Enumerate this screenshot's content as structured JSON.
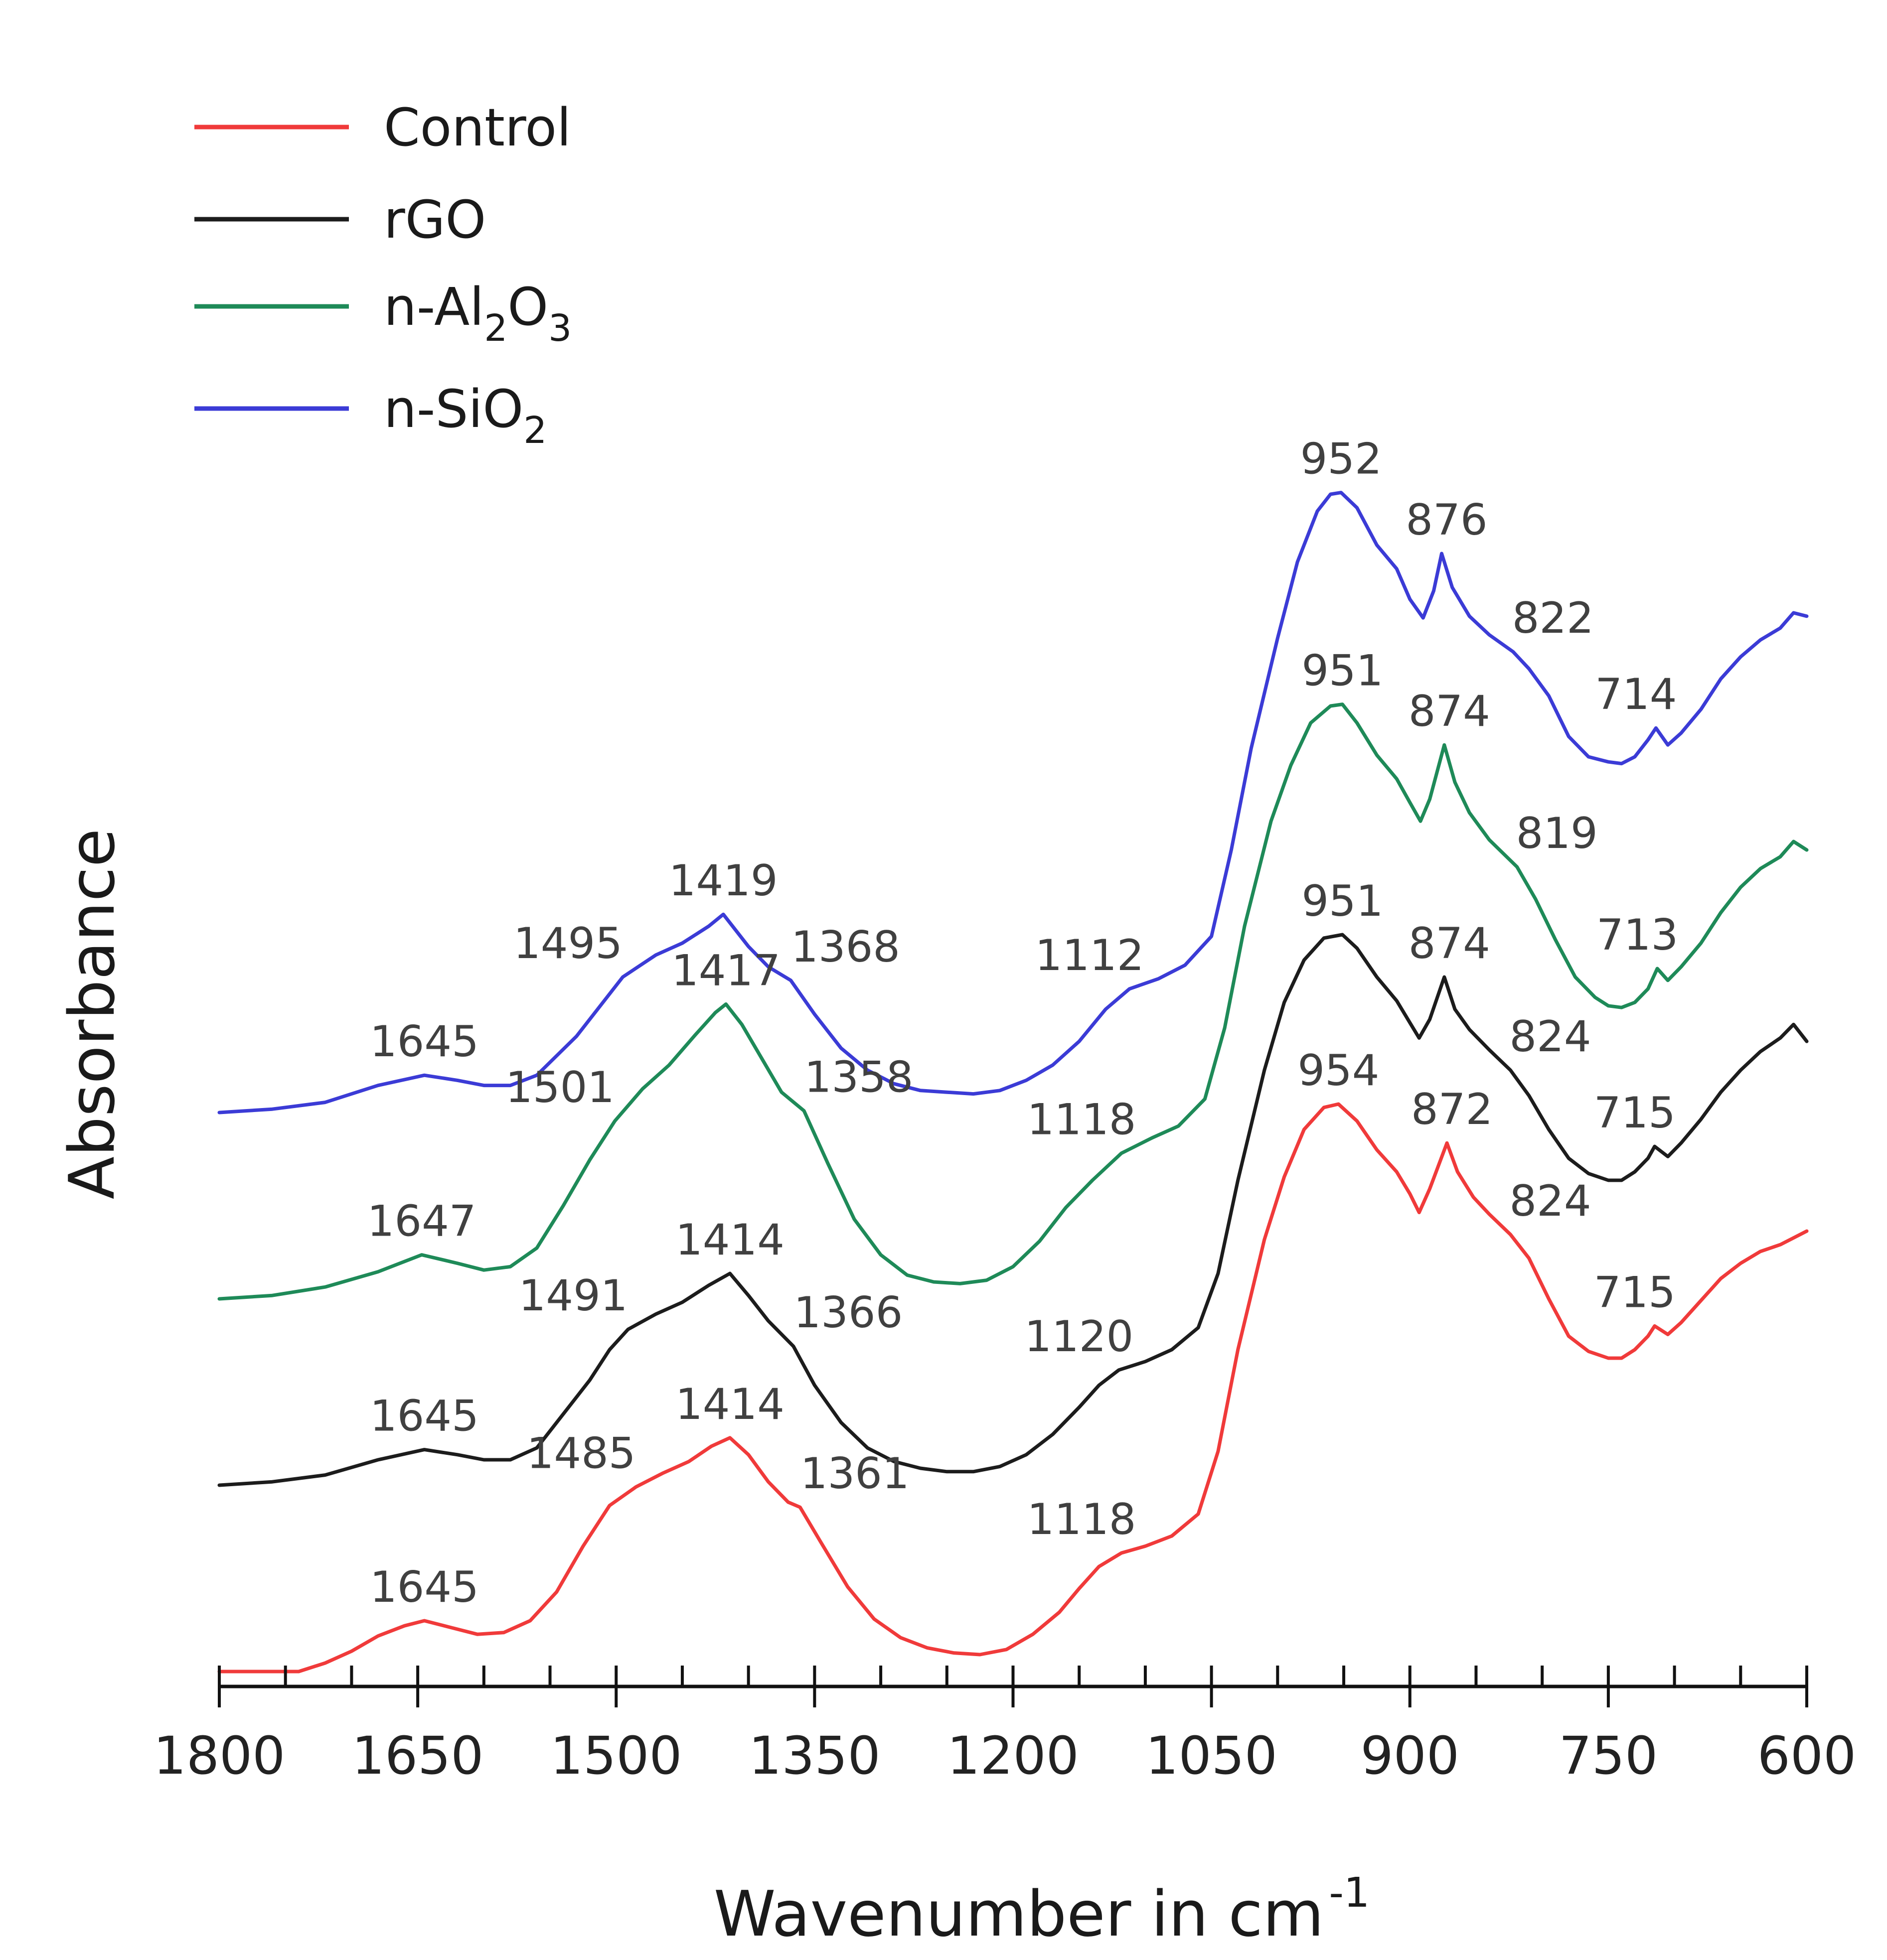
{
  "chart_data": {
    "type": "line",
    "title": "",
    "xlabel": "Wavenumber in cm",
    "xlabel_superscript": "-1",
    "ylabel": "Absorbance",
    "xlim": [
      1800,
      600
    ],
    "x_reversed": true,
    "y_ticks_shown": false,
    "grid": false,
    "legend_position": "top-left",
    "x_ticks": [
      1800,
      1650,
      1500,
      1350,
      1200,
      1050,
      900,
      750,
      600
    ],
    "x_minor_step": 50,
    "series": [
      {
        "name": "n-SiO",
        "name_sub": "2",
        "color": "#3b3bd6",
        "offset": 3.3,
        "points": [
          [
            1800,
            0.0
          ],
          [
            1760,
            0.02
          ],
          [
            1720,
            0.06
          ],
          [
            1680,
            0.16
          ],
          [
            1645,
            0.22
          ],
          [
            1620,
            0.19
          ],
          [
            1600,
            0.16
          ],
          [
            1580,
            0.16
          ],
          [
            1560,
            0.22
          ],
          [
            1530,
            0.45
          ],
          [
            1510,
            0.65
          ],
          [
            1495,
            0.8
          ],
          [
            1470,
            0.93
          ],
          [
            1450,
            1.0
          ],
          [
            1430,
            1.1
          ],
          [
            1419,
            1.17
          ],
          [
            1400,
            0.98
          ],
          [
            1385,
            0.86
          ],
          [
            1368,
            0.78
          ],
          [
            1350,
            0.58
          ],
          [
            1330,
            0.38
          ],
          [
            1310,
            0.25
          ],
          [
            1290,
            0.17
          ],
          [
            1270,
            0.13
          ],
          [
            1250,
            0.12
          ],
          [
            1230,
            0.11
          ],
          [
            1210,
            0.13
          ],
          [
            1190,
            0.19
          ],
          [
            1170,
            0.28
          ],
          [
            1150,
            0.42
          ],
          [
            1130,
            0.61
          ],
          [
            1112,
            0.73
          ],
          [
            1090,
            0.79
          ],
          [
            1070,
            0.87
          ],
          [
            1050,
            1.04
          ],
          [
            1035,
            1.55
          ],
          [
            1020,
            2.15
          ],
          [
            1000,
            2.8
          ],
          [
            985,
            3.25
          ],
          [
            970,
            3.55
          ],
          [
            960,
            3.65
          ],
          [
            952,
            3.66
          ],
          [
            940,
            3.57
          ],
          [
            925,
            3.35
          ],
          [
            910,
            3.21
          ],
          [
            900,
            3.03
          ],
          [
            890,
            2.92
          ],
          [
            882,
            3.08
          ],
          [
            876,
            3.3
          ],
          [
            868,
            3.1
          ],
          [
            855,
            2.93
          ],
          [
            840,
            2.82
          ],
          [
            822,
            2.72
          ],
          [
            810,
            2.62
          ],
          [
            795,
            2.46
          ],
          [
            780,
            2.22
          ],
          [
            765,
            2.1
          ],
          [
            750,
            2.07
          ],
          [
            740,
            2.06
          ],
          [
            730,
            2.1
          ],
          [
            720,
            2.2
          ],
          [
            714,
            2.27
          ],
          [
            705,
            2.17
          ],
          [
            695,
            2.24
          ],
          [
            680,
            2.38
          ],
          [
            665,
            2.56
          ],
          [
            650,
            2.69
          ],
          [
            635,
            2.79
          ],
          [
            620,
            2.86
          ],
          [
            610,
            2.95
          ],
          [
            600,
            2.93
          ]
        ],
        "peak_labels": [
          1645,
          1495,
          1419,
          1368,
          1112,
          952,
          876,
          822,
          714
        ]
      },
      {
        "name": "n-Al",
        "name_sub": "2",
        "name_mid": "O",
        "name_sub2": "3",
        "color": "#1e8a58",
        "offset": 2.2,
        "points": [
          [
            1800,
            0.0
          ],
          [
            1760,
            0.02
          ],
          [
            1720,
            0.07
          ],
          [
            1680,
            0.16
          ],
          [
            1647,
            0.26
          ],
          [
            1620,
            0.21
          ],
          [
            1600,
            0.17
          ],
          [
            1580,
            0.19
          ],
          [
            1560,
            0.3
          ],
          [
            1540,
            0.55
          ],
          [
            1520,
            0.82
          ],
          [
            1501,
            1.05
          ],
          [
            1480,
            1.24
          ],
          [
            1460,
            1.38
          ],
          [
            1440,
            1.56
          ],
          [
            1425,
            1.69
          ],
          [
            1417,
            1.74
          ],
          [
            1405,
            1.62
          ],
          [
            1390,
            1.42
          ],
          [
            1375,
            1.22
          ],
          [
            1358,
            1.11
          ],
          [
            1340,
            0.8
          ],
          [
            1320,
            0.47
          ],
          [
            1300,
            0.26
          ],
          [
            1280,
            0.14
          ],
          [
            1260,
            0.1
          ],
          [
            1240,
            0.09
          ],
          [
            1220,
            0.11
          ],
          [
            1200,
            0.19
          ],
          [
            1180,
            0.34
          ],
          [
            1160,
            0.54
          ],
          [
            1140,
            0.7
          ],
          [
            1118,
            0.86
          ],
          [
            1095,
            0.95
          ],
          [
            1075,
            1.02
          ],
          [
            1055,
            1.18
          ],
          [
            1040,
            1.6
          ],
          [
            1025,
            2.2
          ],
          [
            1005,
            2.82
          ],
          [
            990,
            3.15
          ],
          [
            975,
            3.4
          ],
          [
            960,
            3.5
          ],
          [
            951,
            3.51
          ],
          [
            940,
            3.4
          ],
          [
            925,
            3.21
          ],
          [
            910,
            3.07
          ],
          [
            900,
            2.93
          ],
          [
            892,
            2.82
          ],
          [
            885,
            2.95
          ],
          [
            874,
            3.27
          ],
          [
            866,
            3.05
          ],
          [
            855,
            2.87
          ],
          [
            840,
            2.71
          ],
          [
            819,
            2.55
          ],
          [
            805,
            2.36
          ],
          [
            790,
            2.12
          ],
          [
            775,
            1.9
          ],
          [
            760,
            1.78
          ],
          [
            750,
            1.73
          ],
          [
            740,
            1.72
          ],
          [
            730,
            1.75
          ],
          [
            720,
            1.83
          ],
          [
            713,
            1.95
          ],
          [
            705,
            1.88
          ],
          [
            695,
            1.96
          ],
          [
            680,
            2.1
          ],
          [
            665,
            2.28
          ],
          [
            650,
            2.43
          ],
          [
            635,
            2.54
          ],
          [
            620,
            2.61
          ],
          [
            610,
            2.7
          ],
          [
            600,
            2.65
          ]
        ],
        "peak_labels": [
          1647,
          1501,
          1417,
          1358,
          1118,
          951,
          874,
          819,
          713
        ]
      },
      {
        "name": "rGO",
        "color": "#1c1c1c",
        "offset": 1.1,
        "points": [
          [
            1800,
            0.0
          ],
          [
            1760,
            0.02
          ],
          [
            1720,
            0.06
          ],
          [
            1680,
            0.15
          ],
          [
            1645,
            0.21
          ],
          [
            1620,
            0.18
          ],
          [
            1600,
            0.15
          ],
          [
            1580,
            0.15
          ],
          [
            1560,
            0.22
          ],
          [
            1540,
            0.42
          ],
          [
            1520,
            0.62
          ],
          [
            1505,
            0.8
          ],
          [
            1491,
            0.92
          ],
          [
            1470,
            1.01
          ],
          [
            1450,
            1.08
          ],
          [
            1430,
            1.18
          ],
          [
            1414,
            1.25
          ],
          [
            1400,
            1.12
          ],
          [
            1385,
            0.97
          ],
          [
            1366,
            0.82
          ],
          [
            1350,
            0.59
          ],
          [
            1330,
            0.37
          ],
          [
            1310,
            0.22
          ],
          [
            1290,
            0.14
          ],
          [
            1270,
            0.1
          ],
          [
            1250,
            0.08
          ],
          [
            1230,
            0.08
          ],
          [
            1210,
            0.11
          ],
          [
            1190,
            0.18
          ],
          [
            1170,
            0.3
          ],
          [
            1150,
            0.46
          ],
          [
            1135,
            0.59
          ],
          [
            1120,
            0.68
          ],
          [
            1100,
            0.73
          ],
          [
            1080,
            0.8
          ],
          [
            1060,
            0.93
          ],
          [
            1045,
            1.25
          ],
          [
            1030,
            1.8
          ],
          [
            1010,
            2.45
          ],
          [
            995,
            2.85
          ],
          [
            980,
            3.1
          ],
          [
            965,
            3.23
          ],
          [
            951,
            3.25
          ],
          [
            940,
            3.17
          ],
          [
            925,
            3.0
          ],
          [
            910,
            2.86
          ],
          [
            900,
            2.73
          ],
          [
            893,
            2.64
          ],
          [
            885,
            2.75
          ],
          [
            874,
            3.0
          ],
          [
            866,
            2.81
          ],
          [
            855,
            2.69
          ],
          [
            840,
            2.57
          ],
          [
            824,
            2.45
          ],
          [
            810,
            2.3
          ],
          [
            795,
            2.1
          ],
          [
            780,
            1.93
          ],
          [
            765,
            1.84
          ],
          [
            750,
            1.8
          ],
          [
            740,
            1.8
          ],
          [
            730,
            1.85
          ],
          [
            720,
            1.93
          ],
          [
            715,
            2.0
          ],
          [
            705,
            1.94
          ],
          [
            695,
            2.02
          ],
          [
            680,
            2.16
          ],
          [
            665,
            2.32
          ],
          [
            650,
            2.45
          ],
          [
            635,
            2.56
          ],
          [
            620,
            2.64
          ],
          [
            610,
            2.72
          ],
          [
            600,
            2.62
          ]
        ],
        "peak_labels": [
          1645,
          1491,
          1414,
          1366,
          1120,
          951,
          874,
          824,
          715
        ]
      },
      {
        "name": "Control",
        "color": "#f03a3a",
        "offset": 0.0,
        "points": [
          [
            1800,
            0.0
          ],
          [
            1760,
            0.0
          ],
          [
            1740,
            0.0
          ],
          [
            1720,
            0.05
          ],
          [
            1700,
            0.12
          ],
          [
            1680,
            0.21
          ],
          [
            1660,
            0.27
          ],
          [
            1645,
            0.3
          ],
          [
            1625,
            0.26
          ],
          [
            1605,
            0.22
          ],
          [
            1585,
            0.23
          ],
          [
            1565,
            0.3
          ],
          [
            1545,
            0.47
          ],
          [
            1525,
            0.74
          ],
          [
            1505,
            0.98
          ],
          [
            1485,
            1.09
          ],
          [
            1465,
            1.17
          ],
          [
            1445,
            1.24
          ],
          [
            1428,
            1.33
          ],
          [
            1414,
            1.38
          ],
          [
            1400,
            1.28
          ],
          [
            1385,
            1.12
          ],
          [
            1370,
            1.0
          ],
          [
            1361,
            0.97
          ],
          [
            1345,
            0.76
          ],
          [
            1325,
            0.5
          ],
          [
            1305,
            0.31
          ],
          [
            1285,
            0.2
          ],
          [
            1265,
            0.14
          ],
          [
            1245,
            0.11
          ],
          [
            1225,
            0.1
          ],
          [
            1205,
            0.13
          ],
          [
            1185,
            0.22
          ],
          [
            1165,
            0.35
          ],
          [
            1150,
            0.49
          ],
          [
            1135,
            0.62
          ],
          [
            1118,
            0.7
          ],
          [
            1100,
            0.74
          ],
          [
            1080,
            0.8
          ],
          [
            1060,
            0.93
          ],
          [
            1045,
            1.3
          ],
          [
            1030,
            1.9
          ],
          [
            1010,
            2.55
          ],
          [
            995,
            2.92
          ],
          [
            980,
            3.2
          ],
          [
            965,
            3.33
          ],
          [
            954,
            3.35
          ],
          [
            940,
            3.25
          ],
          [
            925,
            3.08
          ],
          [
            910,
            2.95
          ],
          [
            900,
            2.82
          ],
          [
            893,
            2.71
          ],
          [
            885,
            2.85
          ],
          [
            872,
            3.12
          ],
          [
            864,
            2.95
          ],
          [
            852,
            2.8
          ],
          [
            840,
            2.7
          ],
          [
            824,
            2.58
          ],
          [
            810,
            2.44
          ],
          [
            795,
            2.2
          ],
          [
            780,
            1.98
          ],
          [
            765,
            1.89
          ],
          [
            750,
            1.85
          ],
          [
            740,
            1.85
          ],
          [
            730,
            1.9
          ],
          [
            720,
            1.98
          ],
          [
            715,
            2.04
          ],
          [
            705,
            1.99
          ],
          [
            695,
            2.06
          ],
          [
            680,
            2.19
          ],
          [
            665,
            2.32
          ],
          [
            650,
            2.41
          ],
          [
            635,
            2.48
          ],
          [
            620,
            2.52
          ],
          [
            610,
            2.56
          ],
          [
            600,
            2.6
          ]
        ],
        "peak_labels": [
          1645,
          1485,
          1414,
          1361,
          1118,
          954,
          872,
          824,
          715
        ]
      }
    ]
  }
}
